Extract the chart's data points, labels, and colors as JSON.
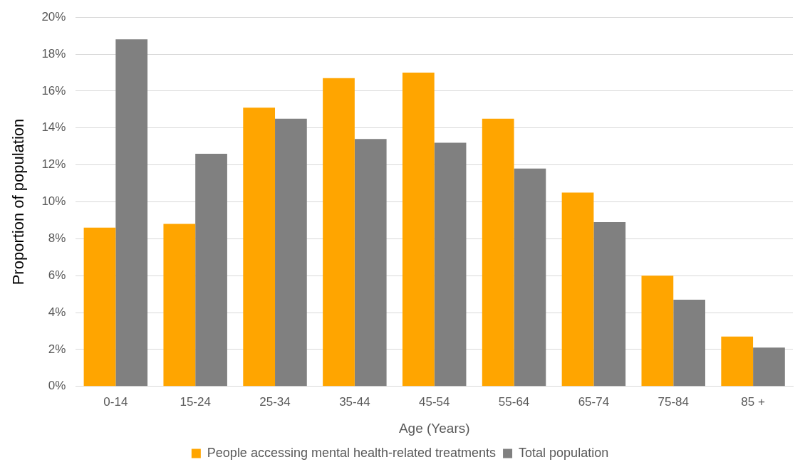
{
  "chart_data": {
    "type": "bar",
    "xlabel": "Age (Years)",
    "ylabel": "Proportion of population",
    "categories": [
      "0-14",
      "15-24",
      "25-34",
      "35-44",
      "45-54",
      "55-64",
      "65-74",
      "75-84",
      "85 +"
    ],
    "series": [
      {
        "name": "People accessing mental health-related treatments",
        "color": "#ffa500",
        "values": [
          8.6,
          8.8,
          15.1,
          16.7,
          17.0,
          14.5,
          10.5,
          6.0,
          2.7
        ]
      },
      {
        "name": "Total population",
        "color": "#808080",
        "values": [
          18.8,
          12.6,
          14.5,
          13.4,
          13.2,
          11.8,
          8.9,
          4.7,
          2.1
        ]
      }
    ],
    "ylim": [
      0,
      20
    ],
    "yticks": [
      {
        "value": 0,
        "label": "0%"
      },
      {
        "value": 2,
        "label": "2%"
      },
      {
        "value": 4,
        "label": "4%"
      },
      {
        "value": 6,
        "label": "6%"
      },
      {
        "value": 8,
        "label": "8%"
      },
      {
        "value": 10,
        "label": "10%"
      },
      {
        "value": 12,
        "label": "12%"
      },
      {
        "value": 14,
        "label": "14%"
      },
      {
        "value": 16,
        "label": "16%"
      },
      {
        "value": 18,
        "label": "18%"
      },
      {
        "value": 20,
        "label": "20%"
      }
    ],
    "grid": "y",
    "legend": "bottom"
  }
}
